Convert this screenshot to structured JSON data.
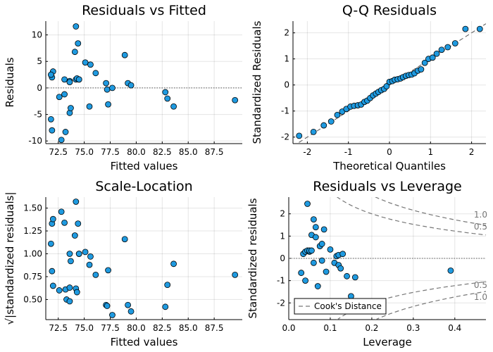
{
  "chart_data": [
    {
      "type": "scatter",
      "title": "Residuals vs Fitted",
      "xlabel": "Fitted values",
      "ylabel": "Residuals",
      "xlim": [
        71.3,
        90.2
      ],
      "ylim": [
        -10.5,
        12.6
      ],
      "xticks": [
        72.5,
        75.0,
        77.5,
        80.0,
        82.5,
        85.0,
        87.5
      ],
      "xtick_labels": [
        "72.5",
        "75.0",
        "77.5",
        "80.0",
        "82.5",
        "85.0",
        "87.5"
      ],
      "yticks": [
        -10,
        -5,
        0,
        5,
        10
      ],
      "ytick_labels": [
        "-10",
        "-5",
        "0",
        "5",
        "10"
      ],
      "reference_line_y": 0,
      "grid": true,
      "x": [
        71.8,
        71.9,
        71.9,
        72.0,
        71.8,
        72.6,
        72.8,
        73.1,
        73.2,
        73.1,
        73.6,
        73.7,
        73.6,
        73.6,
        74.1,
        74.2,
        74.2,
        74.3,
        74.4,
        74.5,
        74.5,
        75.1,
        75.6,
        75.5,
        76.1,
        77.1,
        77.3,
        77.2,
        77.7,
        78.9,
        79.2,
        79.5,
        82.8,
        83.0,
        83.6,
        89.5
      ],
      "y": [
        -5.9,
        -8.0,
        2.0,
        3.1,
        2.5,
        -1.7,
        -9.8,
        -1.2,
        -8.3,
        1.6,
        -4.7,
        -3.8,
        1.3,
        1.1,
        6.8,
        11.6,
        1.6,
        1.8,
        8.4,
        1.6,
        1.6,
        4.8,
        4.4,
        -3.5,
        2.8,
        0.9,
        -3.1,
        -0.3,
        0.0,
        6.2,
        0.9,
        0.5,
        -0.8,
        -2.0,
        -3.5,
        -2.3
      ]
    },
    {
      "type": "scatter",
      "title": "Q-Q Residuals",
      "xlabel": "Theoretical Quantiles",
      "ylabel": "Standardized Residuals",
      "xlim": [
        -2.35,
        2.35
      ],
      "ylim": [
        -2.25,
        2.45
      ],
      "xticks": [
        -2,
        -1,
        0,
        1,
        2
      ],
      "xtick_labels": [
        "-2",
        "-1",
        "0",
        "1",
        "2"
      ],
      "yticks": [
        -2,
        -1,
        0,
        1,
        2
      ],
      "ytick_labels": [
        "-2",
        "-1",
        "0",
        "1",
        "2"
      ],
      "reference_line": [
        [
          -2.35,
          -2.35
        ],
        [
          2.35,
          2.35
        ]
      ],
      "grid": true,
      "x": [
        -2.2,
        -1.85,
        -1.6,
        -1.42,
        -1.27,
        -1.15,
        -1.05,
        -0.95,
        -0.86,
        -0.77,
        -0.69,
        -0.61,
        -0.54,
        -0.47,
        -0.4,
        -0.33,
        -0.27,
        -0.2,
        -0.13,
        -0.07,
        0.0,
        0.07,
        0.13,
        0.2,
        0.27,
        0.33,
        0.4,
        0.47,
        0.54,
        0.61,
        0.69,
        0.77,
        0.86,
        0.95,
        1.05,
        1.15,
        1.27,
        1.42,
        1.6,
        1.85,
        2.2
      ],
      "y": [
        -1.95,
        -1.8,
        -1.55,
        -1.4,
        -1.15,
        -1.02,
        -0.92,
        -0.83,
        -0.8,
        -0.78,
        -0.75,
        -0.65,
        -0.6,
        -0.5,
        -0.4,
        -0.33,
        -0.27,
        -0.2,
        -0.15,
        -0.05,
        0.12,
        0.15,
        0.2,
        0.22,
        0.25,
        0.3,
        0.35,
        0.38,
        0.4,
        0.45,
        0.55,
        0.6,
        0.85,
        1.0,
        1.05,
        1.2,
        1.35,
        1.45,
        1.6,
        2.15,
        2.15
      ]
    },
    {
      "type": "scatter",
      "title": "Scale-Location",
      "xlabel": "Fitted values",
      "ylabel": "√|standardized residuals|",
      "xlim": [
        71.3,
        90.2
      ],
      "ylim": [
        0.28,
        1.62
      ],
      "xticks": [
        72.5,
        75.0,
        77.5,
        80.0,
        82.5,
        85.0,
        87.5
      ],
      "xtick_labels": [
        "72.5",
        "75.0",
        "77.5",
        "80.0",
        "82.5",
        "85.0",
        "87.5"
      ],
      "yticks": [
        0.5,
        0.75,
        1.0,
        1.25,
        1.5
      ],
      "ytick_labels": [
        "0.50",
        "0.75",
        "1.00",
        "1.25",
        "1.50"
      ],
      "grid": true,
      "x": [
        71.8,
        71.9,
        71.9,
        72.0,
        72.0,
        72.6,
        72.8,
        73.1,
        73.2,
        73.3,
        73.6,
        73.7,
        73.6,
        73.6,
        74.1,
        74.2,
        74.2,
        74.3,
        74.4,
        74.5,
        74.5,
        75.1,
        75.6,
        75.5,
        76.1,
        77.1,
        77.3,
        77.2,
        77.7,
        78.9,
        79.2,
        79.5,
        82.8,
        83.0,
        83.6,
        89.5
      ],
      "y": [
        1.11,
        1.33,
        0.81,
        0.65,
        1.38,
        0.6,
        1.46,
        1.34,
        0.61,
        0.5,
        1.0,
        0.92,
        0.48,
        0.63,
        1.2,
        1.57,
        0.62,
        0.58,
        1.33,
        1.0,
        1.0,
        1.02,
        0.97,
        0.88,
        0.77,
        0.44,
        0.82,
        0.43,
        0.33,
        1.16,
        0.44,
        0.37,
        0.42,
        0.66,
        0.89,
        0.77
      ]
    },
    {
      "type": "scatter",
      "title": "Residuals vs Leverage",
      "xlabel": "Leverage",
      "ylabel": "Standardized residuals",
      "xlim": [
        0.0,
        0.475
      ],
      "ylim": [
        -2.75,
        2.75
      ],
      "xticks": [
        0.0,
        0.1,
        0.2,
        0.3,
        0.4
      ],
      "xtick_labels": [
        "0.0",
        "0.1",
        "0.2",
        "0.3",
        "0.4"
      ],
      "yticks": [
        -2,
        -1,
        0,
        1,
        2
      ],
      "ytick_labels": [
        "-2",
        "-1",
        "0",
        "1",
        "2"
      ],
      "reference_line_y": 0,
      "grid": true,
      "x": [
        0.03,
        0.035,
        0.04,
        0.04,
        0.045,
        0.045,
        0.05,
        0.05,
        0.055,
        0.055,
        0.06,
        0.06,
        0.065,
        0.065,
        0.07,
        0.075,
        0.08,
        0.08,
        0.085,
        0.09,
        0.1,
        0.11,
        0.115,
        0.12,
        0.12,
        0.125,
        0.13,
        0.14,
        0.15,
        0.16,
        0.39
      ],
      "y": [
        -0.65,
        0.2,
        -1.0,
        0.3,
        0.35,
        2.45,
        0.3,
        0.35,
        1.05,
        0.35,
        1.75,
        -0.2,
        1.4,
        0.95,
        -1.25,
        0.55,
        0.65,
        -0.1,
        1.3,
        -0.6,
        0.4,
        -0.2,
        0.1,
        -0.3,
        0.15,
        -0.45,
        0.2,
        -0.8,
        -1.7,
        -0.85,
        -0.55
      ],
      "cook_levels": [
        0.5,
        1.0
      ],
      "cook_labels": [
        "1.0",
        "0.5",
        "0.5",
        "1.0"
      ],
      "legend": {
        "label": "Cook's Distance",
        "position": "bottom-left"
      }
    }
  ]
}
